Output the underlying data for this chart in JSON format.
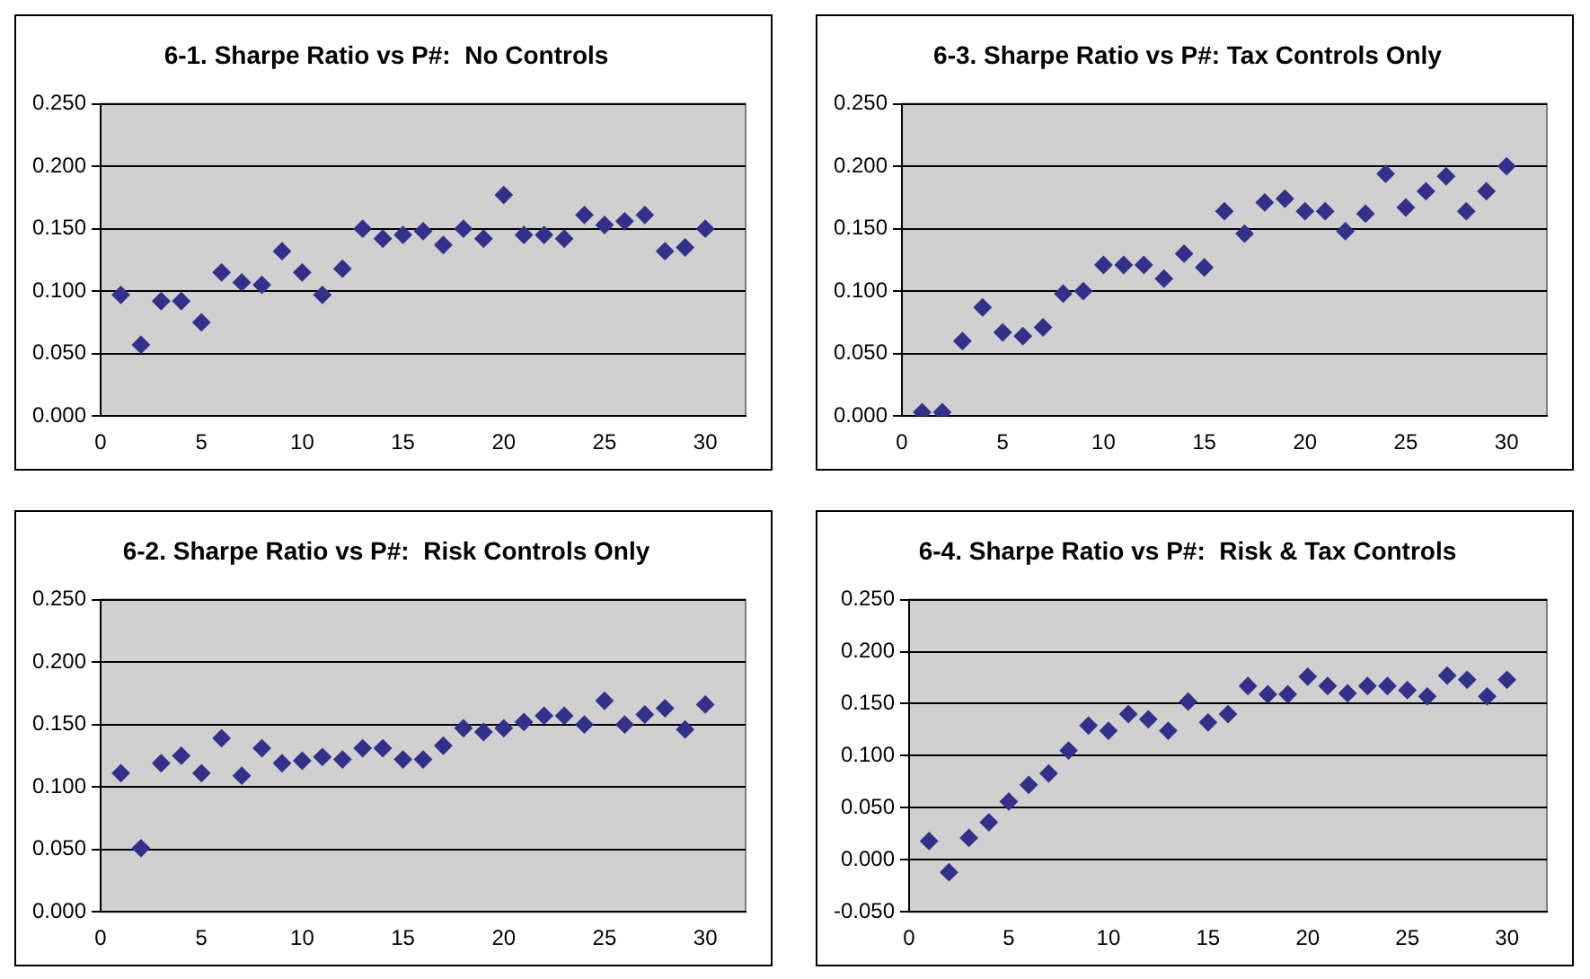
{
  "chart_data": [
    {
      "type": "scatter",
      "title": "6-1. Sharpe Ratio vs P#:  No Controls",
      "marker": "diamond",
      "grid": "y",
      "color": "#33308a",
      "x": [
        1,
        2,
        3,
        4,
        5,
        6,
        7,
        8,
        9,
        10,
        11,
        12,
        13,
        14,
        15,
        16,
        17,
        18,
        19,
        20,
        21,
        22,
        23,
        24,
        25,
        26,
        27,
        28,
        29,
        30
      ],
      "values": [
        0.097,
        0.057,
        0.092,
        0.092,
        0.075,
        0.115,
        0.107,
        0.105,
        0.132,
        0.115,
        0.097,
        0.118,
        0.15,
        0.142,
        0.145,
        0.148,
        0.137,
        0.15,
        0.142,
        0.177,
        0.145,
        0.145,
        0.142,
        0.161,
        0.153,
        0.156,
        0.161,
        0.132,
        0.135,
        0.15
      ],
      "xlim": [
        0,
        32
      ],
      "xticks": [
        0,
        5,
        10,
        15,
        20,
        25,
        30
      ],
      "ylim": [
        0,
        0.25
      ],
      "yticks": [
        {
          "value": 0,
          "label": "0.000"
        },
        {
          "value": 0.05,
          "label": "0.050"
        },
        {
          "value": 0.1,
          "label": "0.100"
        },
        {
          "value": 0.15,
          "label": "0.150"
        },
        {
          "value": 0.2,
          "label": "0.200"
        },
        {
          "value": 0.25,
          "label": "0.250"
        }
      ]
    },
    {
      "type": "scatter",
      "title": "6-3. Sharpe Ratio vs P#: Tax Controls Only",
      "marker": "diamond",
      "grid": "y",
      "color": "#33308a",
      "x": [
        1,
        2,
        3,
        4,
        5,
        6,
        7,
        8,
        9,
        10,
        11,
        12,
        13,
        14,
        15,
        16,
        17,
        18,
        19,
        20,
        21,
        22,
        23,
        24,
        25,
        26,
        27,
        28,
        29,
        30
      ],
      "values": [
        0.003,
        0.003,
        0.06,
        0.087,
        0.067,
        0.064,
        0.071,
        0.098,
        0.1,
        0.121,
        0.121,
        0.121,
        0.11,
        0.13,
        0.119,
        0.164,
        0.146,
        0.171,
        0.174,
        0.164,
        0.164,
        0.148,
        0.162,
        0.194,
        0.167,
        0.18,
        0.192,
        0.164,
        0.18,
        0.2
      ],
      "xlim": [
        0,
        32
      ],
      "xticks": [
        0,
        5,
        10,
        15,
        20,
        25,
        30
      ],
      "ylim": [
        0,
        0.25
      ],
      "yticks": [
        {
          "value": 0,
          "label": "0.000"
        },
        {
          "value": 0.05,
          "label": "0.050"
        },
        {
          "value": 0.1,
          "label": "0.100"
        },
        {
          "value": 0.15,
          "label": "0.150"
        },
        {
          "value": 0.2,
          "label": "0.200"
        },
        {
          "value": 0.25,
          "label": "0.250"
        }
      ]
    },
    {
      "type": "scatter",
      "title": "6-2. Sharpe Ratio vs P#:  Risk Controls Only",
      "marker": "diamond",
      "grid": "y",
      "color": "#33308a",
      "x": [
        1,
        2,
        3,
        4,
        5,
        6,
        7,
        8,
        9,
        10,
        11,
        12,
        13,
        14,
        15,
        16,
        17,
        18,
        19,
        20,
        21,
        22,
        23,
        24,
        25,
        26,
        27,
        28,
        29,
        30
      ],
      "values": [
        0.111,
        0.051,
        0.119,
        0.125,
        0.111,
        0.139,
        0.109,
        0.131,
        0.119,
        0.121,
        0.124,
        0.122,
        0.131,
        0.131,
        0.122,
        0.122,
        0.133,
        0.147,
        0.144,
        0.147,
        0.152,
        0.157,
        0.157,
        0.15,
        0.169,
        0.15,
        0.158,
        0.163,
        0.146,
        0.166
      ],
      "xlim": [
        0,
        32
      ],
      "xticks": [
        0,
        5,
        10,
        15,
        20,
        25,
        30
      ],
      "ylim": [
        0,
        0.25
      ],
      "yticks": [
        {
          "value": 0,
          "label": "0.000"
        },
        {
          "value": 0.05,
          "label": "0.050"
        },
        {
          "value": 0.1,
          "label": "0.100"
        },
        {
          "value": 0.15,
          "label": "0.150"
        },
        {
          "value": 0.2,
          "label": "0.200"
        },
        {
          "value": 0.25,
          "label": "0.250"
        }
      ]
    },
    {
      "type": "scatter",
      "title": "6-4. Sharpe Ratio vs P#:  Risk & Tax Controls",
      "marker": "diamond",
      "grid": "y",
      "color": "#33308a",
      "x": [
        1,
        2,
        3,
        4,
        5,
        6,
        7,
        8,
        9,
        10,
        11,
        12,
        13,
        14,
        15,
        16,
        17,
        18,
        19,
        20,
        21,
        22,
        23,
        24,
        25,
        26,
        27,
        28,
        29,
        30
      ],
      "values": [
        0.018,
        -0.012,
        0.021,
        0.036,
        0.056,
        0.072,
        0.083,
        0.105,
        0.129,
        0.124,
        0.14,
        0.135,
        0.124,
        0.152,
        0.132,
        0.14,
        0.167,
        0.159,
        0.159,
        0.176,
        0.167,
        0.16,
        0.167,
        0.167,
        0.163,
        0.157,
        0.177,
        0.173,
        0.157,
        0.173
      ],
      "xlim": [
        0,
        32
      ],
      "xticks": [
        0,
        5,
        10,
        15,
        20,
        25,
        30
      ],
      "ylim": [
        -0.05,
        0.25
      ],
      "yticks": [
        {
          "value": -0.05,
          "label": "-0.050"
        },
        {
          "value": 0,
          "label": "0.000"
        },
        {
          "value": 0.05,
          "label": "0.050"
        },
        {
          "value": 0.1,
          "label": "0.100"
        },
        {
          "value": 0.15,
          "label": "0.150"
        },
        {
          "value": 0.2,
          "label": "0.200"
        },
        {
          "value": 0.25,
          "label": "0.250"
        }
      ]
    }
  ]
}
